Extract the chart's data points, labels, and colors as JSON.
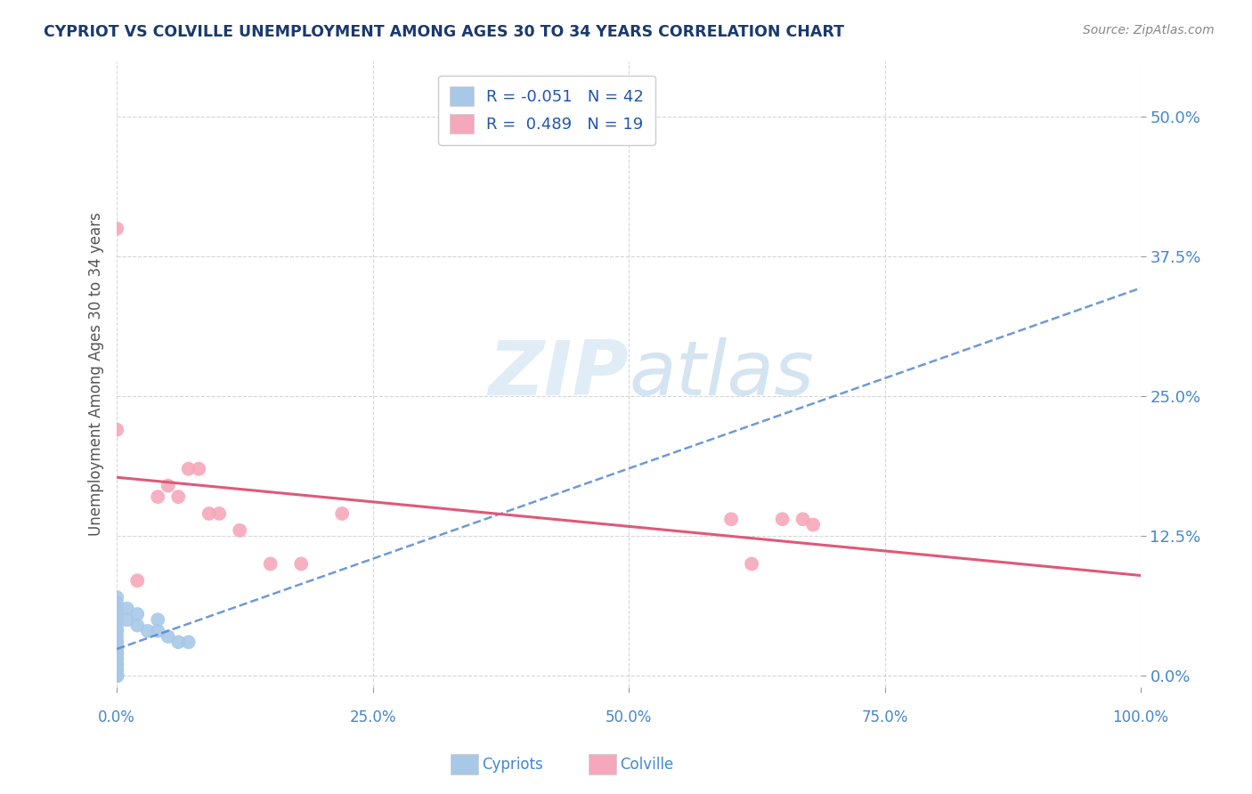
{
  "title": "CYPRIOT VS COLVILLE UNEMPLOYMENT AMONG AGES 30 TO 34 YEARS CORRELATION CHART",
  "source": "Source: ZipAtlas.com",
  "xlabel_cypriot": "Cypriots",
  "xlabel_colville": "Colville",
  "ylabel": "Unemployment Among Ages 30 to 34 years",
  "watermark_zip": "ZIP",
  "watermark_atlas": "atlas",
  "cypriot_R": -0.051,
  "cypriot_N": 42,
  "colville_R": 0.489,
  "colville_N": 19,
  "cypriot_color": "#a8c8e8",
  "colville_color": "#f5a8bc",
  "cypriot_line_color": "#5588cc",
  "colville_line_color": "#e05878",
  "title_color": "#1a3a6e",
  "axis_label_color": "#555555",
  "tick_color": "#4488cc",
  "background_color": "#ffffff",
  "grid_color": "#cccccc",
  "cypriot_x": [
    0.0,
    0.0,
    0.0,
    0.0,
    0.0,
    0.0,
    0.0,
    0.0,
    0.0,
    0.0,
    0.0,
    0.0,
    0.0,
    0.0,
    0.0,
    0.0,
    0.0,
    0.0,
    0.0,
    0.0,
    0.0,
    0.0,
    0.0,
    0.0,
    0.0,
    0.0,
    0.0,
    0.0,
    0.0,
    0.0,
    0.0,
    0.0,
    0.01,
    0.01,
    0.02,
    0.02,
    0.03,
    0.04,
    0.04,
    0.05,
    0.06,
    0.07
  ],
  "cypriot_y": [
    0.0,
    0.0,
    0.0,
    0.0,
    0.0,
    0.0,
    0.0,
    0.0,
    0.0,
    0.0,
    0.005,
    0.005,
    0.01,
    0.01,
    0.01,
    0.015,
    0.015,
    0.02,
    0.02,
    0.025,
    0.025,
    0.03,
    0.03,
    0.035,
    0.04,
    0.04,
    0.045,
    0.05,
    0.055,
    0.06,
    0.065,
    0.07,
    0.05,
    0.06,
    0.045,
    0.055,
    0.04,
    0.04,
    0.05,
    0.035,
    0.03,
    0.03
  ],
  "colville_x": [
    0.0,
    0.0,
    0.02,
    0.04,
    0.05,
    0.06,
    0.07,
    0.08,
    0.09,
    0.1,
    0.12,
    0.15,
    0.18,
    0.22,
    0.6,
    0.62,
    0.65,
    0.67,
    0.68
  ],
  "colville_y": [
    0.4,
    0.22,
    0.085,
    0.16,
    0.17,
    0.16,
    0.185,
    0.185,
    0.145,
    0.145,
    0.13,
    0.1,
    0.1,
    0.145,
    0.14,
    0.1,
    0.14,
    0.14,
    0.135
  ],
  "xlim": [
    0.0,
    1.0
  ],
  "ylim": [
    -0.01,
    0.55
  ],
  "xticks": [
    0.0,
    0.25,
    0.5,
    0.75,
    1.0
  ],
  "yticks": [
    0.0,
    0.125,
    0.25,
    0.375,
    0.5
  ],
  "xtick_labels": [
    "0.0%",
    "25.0%",
    "50.0%",
    "75.0%",
    "100.0%"
  ],
  "ytick_labels": [
    "0.0%",
    "12.5%",
    "25.0%",
    "37.5%",
    "50.0%"
  ]
}
